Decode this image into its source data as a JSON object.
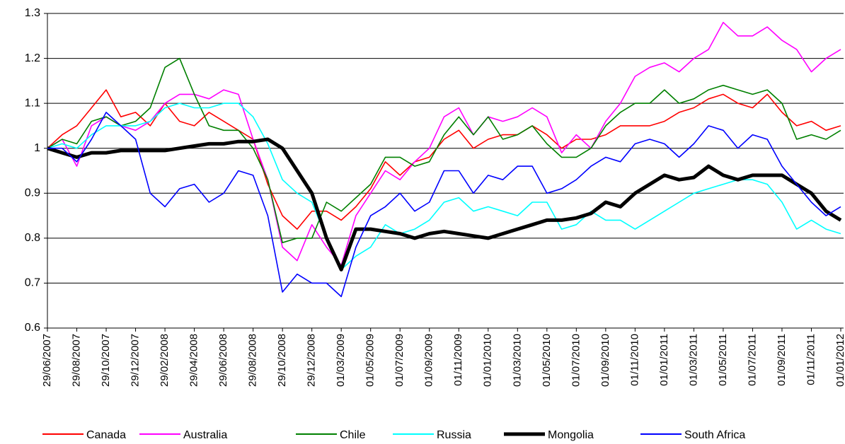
{
  "chart_data": {
    "type": "line",
    "categories": [
      "29/06/2007",
      null,
      "29/08/2007",
      null,
      "29/10/2007",
      null,
      "29/12/2007",
      null,
      "29/02/2008",
      null,
      "29/04/2008",
      null,
      "29/06/2008",
      null,
      "29/08/2008",
      null,
      "29/10/2008",
      null,
      "29/12/2008",
      null,
      "01/03/2009",
      null,
      "01/05/2009",
      null,
      "01/07/2009",
      null,
      "01/09/2009",
      null,
      "01/11/2009",
      null,
      "01/01/2010",
      null,
      "01/03/2010",
      null,
      "01/05/2010",
      null,
      "01/07/2010",
      null,
      "01/09/2010",
      null,
      "01/11/2010",
      null,
      "01/01/2011",
      null,
      "01/03/2011",
      null,
      "01/05/2011",
      null,
      "01/07/2011",
      null,
      "01/09/2011",
      null,
      "01/11/2011",
      null,
      "01/01/2012"
    ],
    "series": [
      {
        "name": "Canada",
        "color": "#ff0000",
        "values": [
          1.0,
          1.03,
          1.05,
          1.09,
          1.13,
          1.07,
          1.08,
          1.05,
          1.1,
          1.06,
          1.05,
          1.08,
          1.06,
          1.04,
          1.02,
          0.92,
          0.85,
          0.82,
          0.86,
          0.86,
          0.84,
          0.87,
          0.91,
          0.97,
          0.94,
          0.97,
          0.98,
          1.02,
          1.04,
          1.0,
          1.02,
          1.03,
          1.03,
          1.05,
          1.03,
          1.0,
          1.02,
          1.02,
          1.03,
          1.05,
          1.05,
          1.05,
          1.06,
          1.08,
          1.09,
          1.11,
          1.12,
          1.1,
          1.09,
          1.12,
          1.08,
          1.05,
          1.06,
          1.04,
          1.05
        ]
      },
      {
        "name": "Australia",
        "color": "#ff00ff",
        "values": [
          1.0,
          1.02,
          0.96,
          1.05,
          1.07,
          1.05,
          1.04,
          1.06,
          1.1,
          1.12,
          1.12,
          1.11,
          1.13,
          1.12,
          1.02,
          0.93,
          0.78,
          0.75,
          0.83,
          0.78,
          0.74,
          0.85,
          0.9,
          0.95,
          0.93,
          0.97,
          1.0,
          1.07,
          1.09,
          1.03,
          1.07,
          1.06,
          1.07,
          1.09,
          1.07,
          0.99,
          1.03,
          1.0,
          1.06,
          1.1,
          1.16,
          1.18,
          1.19,
          1.17,
          1.2,
          1.22,
          1.28,
          1.25,
          1.25,
          1.27,
          1.24,
          1.22,
          1.17,
          1.2,
          1.22
        ]
      },
      {
        "name": "Chile",
        "color": "#008000",
        "values": [
          1.0,
          1.02,
          1.01,
          1.06,
          1.07,
          1.05,
          1.06,
          1.09,
          1.18,
          1.2,
          1.12,
          1.05,
          1.04,
          1.04,
          1.0,
          0.93,
          0.79,
          0.8,
          0.8,
          0.88,
          0.86,
          0.89,
          0.92,
          0.98,
          0.98,
          0.96,
          0.97,
          1.03,
          1.07,
          1.03,
          1.07,
          1.02,
          1.03,
          1.05,
          1.01,
          0.98,
          0.98,
          1.0,
          1.05,
          1.08,
          1.1,
          1.1,
          1.13,
          1.1,
          1.11,
          1.13,
          1.14,
          1.13,
          1.12,
          1.13,
          1.1,
          1.02,
          1.03,
          1.02,
          1.04
        ]
      },
      {
        "name": "Russia",
        "color": "#00ffff",
        "values": [
          1.0,
          1.01,
          1.0,
          1.03,
          1.05,
          1.05,
          1.05,
          1.06,
          1.09,
          1.1,
          1.09,
          1.09,
          1.1,
          1.1,
          1.07,
          1.01,
          0.93,
          0.9,
          0.88,
          0.8,
          0.73,
          0.76,
          0.78,
          0.83,
          0.81,
          0.82,
          0.84,
          0.88,
          0.89,
          0.86,
          0.87,
          0.86,
          0.85,
          0.88,
          0.88,
          0.82,
          0.83,
          0.86,
          0.84,
          0.84,
          0.82,
          0.84,
          0.86,
          0.88,
          0.9,
          0.91,
          0.92,
          0.93,
          0.93,
          0.92,
          0.88,
          0.82,
          0.84,
          0.82,
          0.81
        ]
      },
      {
        "name": "Mongolia",
        "color": "#000000",
        "values": [
          1.0,
          0.99,
          0.98,
          0.99,
          0.99,
          0.995,
          0.995,
          0.995,
          0.995,
          1.0,
          1.005,
          1.01,
          1.01,
          1.015,
          1.015,
          1.02,
          1.0,
          0.95,
          0.9,
          0.8,
          0.73,
          0.82,
          0.82,
          0.815,
          0.81,
          0.8,
          0.81,
          0.815,
          0.81,
          0.805,
          0.8,
          0.81,
          0.82,
          0.83,
          0.84,
          0.84,
          0.845,
          0.855,
          0.88,
          0.87,
          0.9,
          0.92,
          0.94,
          0.93,
          0.935,
          0.96,
          0.94,
          0.93,
          0.94,
          0.94,
          0.94,
          0.92,
          0.9,
          0.86,
          0.84
        ]
      },
      {
        "name": "South Africa",
        "color": "#0000ff",
        "values": [
          1.0,
          1.0,
          0.97,
          1.02,
          1.08,
          1.05,
          1.02,
          0.9,
          0.87,
          0.91,
          0.92,
          0.88,
          0.9,
          0.95,
          0.94,
          0.85,
          0.68,
          0.72,
          0.7,
          0.7,
          0.67,
          0.78,
          0.85,
          0.87,
          0.9,
          0.86,
          0.88,
          0.95,
          0.95,
          0.9,
          0.94,
          0.93,
          0.96,
          0.96,
          0.9,
          0.91,
          0.93,
          0.96,
          0.98,
          0.97,
          1.01,
          1.02,
          1.01,
          0.98,
          1.01,
          1.05,
          1.04,
          1.0,
          1.03,
          1.02,
          0.96,
          0.92,
          0.88,
          0.85,
          0.87
        ]
      }
    ],
    "ylim": [
      0.6,
      1.3
    ],
    "yticks": [
      0.6,
      0.7,
      0.8,
      0.9,
      1,
      1.1,
      1.2,
      1.3
    ],
    "grid": true
  }
}
